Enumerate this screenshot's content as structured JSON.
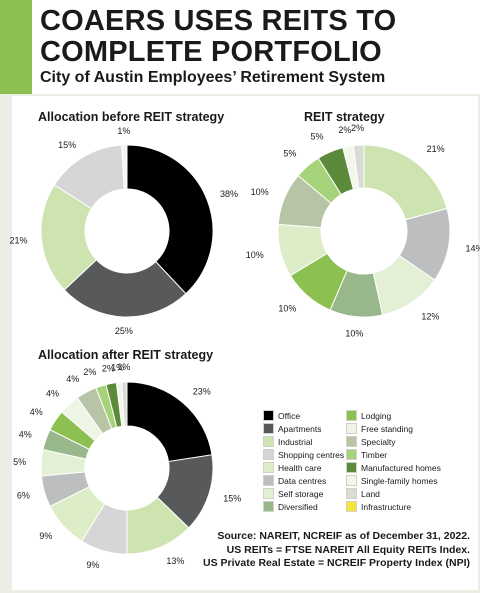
{
  "header": {
    "title": "COAERS USES REITS TO COMPLETE PORTFOLIO",
    "subtitle": "City of Austin Employees’ Retirement System"
  },
  "colors": {
    "accent": "#8cc152",
    "before": {
      "black": "#000000",
      "dark": "#58595b",
      "light_green": "#cde4b1",
      "light_grey": "#d6d6d6"
    }
  },
  "chart_data": [
    {
      "type": "pie",
      "title": "Allocation before REIT strategy",
      "donut": true,
      "slices": [
        {
          "value": 38,
          "label": "38%",
          "color": "#000000"
        },
        {
          "value": 25,
          "label": "25%",
          "color": "#58595b"
        },
        {
          "value": 21,
          "label": "21%",
          "color": "#cde4b1"
        },
        {
          "value": 15,
          "label": "15%",
          "color": "#d6d6d6"
        },
        {
          "value": 1,
          "label": "1%",
          "color": "#f4f4f4"
        }
      ]
    },
    {
      "type": "pie",
      "title": "REIT strategy",
      "donut": true,
      "slices": [
        {
          "name": "Industrial",
          "value": 21,
          "label": "21%",
          "color": "#cde4b1"
        },
        {
          "name": "Data centres",
          "value": 14,
          "label": "14%",
          "color": "#bdbec0"
        },
        {
          "name": "Self storage",
          "value": 12,
          "label": "12%",
          "color": "#e3f0d6"
        },
        {
          "name": "Diversified",
          "value": 10,
          "label": "10%",
          "color": "#98b88c"
        },
        {
          "name": "Lodging",
          "value": 10,
          "label": "10%",
          "color": "#8cc152"
        },
        {
          "name": "Health care",
          "value": 10,
          "label": "10%",
          "color": "#dcedc8"
        },
        {
          "name": "Specialty",
          "value": 10,
          "label": "10%",
          "color": "#b8c4a6"
        },
        {
          "name": "Timber",
          "value": 5,
          "label": "5%",
          "color": "#a6d27a"
        },
        {
          "name": "Manufactured homes",
          "value": 5,
          "label": "5%",
          "color": "#5a8a3a"
        },
        {
          "name": "Single-family homes",
          "value": 2,
          "label": "2%",
          "color": "#f2f7ec"
        },
        {
          "name": "Land",
          "value": 2,
          "label": "2%",
          "color": "#d9dcd4"
        }
      ]
    },
    {
      "type": "pie",
      "title": "Allocation after REIT strategy",
      "donut": true,
      "slices": [
        {
          "name": "Office",
          "value": 23,
          "label": "23%",
          "color": "#000000"
        },
        {
          "name": "Apartments",
          "value": 15,
          "label": "15%",
          "color": "#58595b"
        },
        {
          "name": "Industrial",
          "value": 13,
          "label": "13%",
          "color": "#cde4b1"
        },
        {
          "name": "Shopping centres",
          "value": 9,
          "label": "9%",
          "color": "#d6d6d6"
        },
        {
          "name": "Health care",
          "value": 9,
          "label": "9%",
          "color": "#dcedc8"
        },
        {
          "name": "Data centres",
          "value": 6,
          "label": "6%",
          "color": "#bdbec0"
        },
        {
          "name": "Self storage",
          "value": 5,
          "label": "5%",
          "color": "#e3f0d6"
        },
        {
          "name": "Diversified",
          "value": 4,
          "label": "4%",
          "color": "#98b88c"
        },
        {
          "name": "Lodging",
          "value": 4,
          "label": "4%",
          "color": "#8cc152"
        },
        {
          "name": "Free standing",
          "value": 4,
          "label": "4%",
          "color": "#eef5e4"
        },
        {
          "name": "Specialty",
          "value": 4,
          "label": "4%",
          "color": "#b8c4a6"
        },
        {
          "name": "Timber",
          "value": 2,
          "label": "2%",
          "color": "#a6d27a"
        },
        {
          "name": "Manufactured homes",
          "value": 2,
          "label": "2%",
          "color": "#5a8a3a"
        },
        {
          "name": "Single-family homes",
          "value": 1,
          "label": "1%",
          "color": "#f2f7ec"
        },
        {
          "name": "Land",
          "value": 1,
          "label": "1%",
          "color": "#d9dcd4"
        }
      ]
    }
  ],
  "legend": [
    {
      "label": "Office",
      "color": "#000000"
    },
    {
      "label": "Apartments",
      "color": "#58595b"
    },
    {
      "label": "Industrial",
      "color": "#cde4b1"
    },
    {
      "label": "Shopping centres",
      "color": "#d6d6d6"
    },
    {
      "label": "Health care",
      "color": "#dcedc8"
    },
    {
      "label": "Data centres",
      "color": "#bdbec0"
    },
    {
      "label": "Self storage",
      "color": "#e3f0d6"
    },
    {
      "label": "Diversified",
      "color": "#98b88c"
    },
    {
      "label": "Lodging",
      "color": "#8cc152"
    },
    {
      "label": "Free standing",
      "color": "#eef5e4"
    },
    {
      "label": "Specialty",
      "color": "#b8c4a6"
    },
    {
      "label": "Timber",
      "color": "#a6d27a"
    },
    {
      "label": "Manufactured homes",
      "color": "#5a8a3a"
    },
    {
      "label": "Single-family homes",
      "color": "#f2f7ec"
    },
    {
      "label": "Land",
      "color": "#d9dcd4"
    },
    {
      "label": "Infrastructure",
      "color": "#f5e43a"
    }
  ],
  "source": {
    "line1": "Source: NAREIT, NCREIF as of December 31, 2022.",
    "line2": "US REITs = FTSE NAREIT All Equity REITs Index.",
    "line3": "US Private Real Estate = NCREIF Property Index (NPI)"
  }
}
